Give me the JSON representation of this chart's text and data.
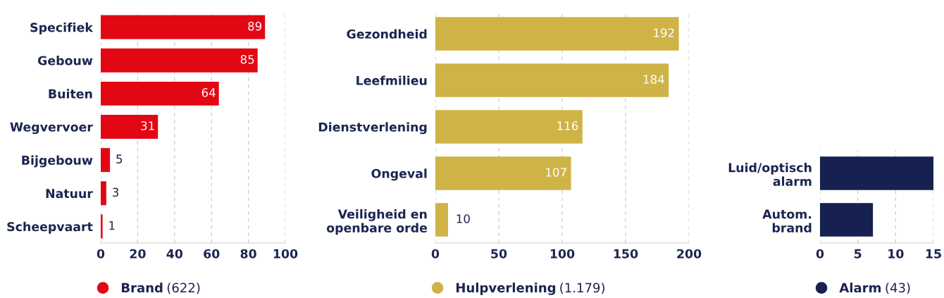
{
  "chart_data": [
    {
      "type": "bar",
      "orientation": "horizontal",
      "categories": [
        "Specifiek",
        "Gebouw",
        "Buiten",
        "Wegvervoer",
        "Bijgebouw",
        "Natuur",
        "Scheepvaart"
      ],
      "series": [
        {
          "name": "Brand",
          "color": "#e30613",
          "values": [
            89,
            85,
            64,
            31,
            5,
            3,
            1
          ]
        }
      ],
      "xlim": [
        0,
        100
      ],
      "xticks": [
        0,
        20,
        40,
        60,
        80,
        100
      ],
      "grid": "x",
      "data_labels": true,
      "legend": "bottom",
      "annotations": [
        "(622)"
      ]
    },
    {
      "type": "bar",
      "orientation": "horizontal",
      "categories": [
        "Gezondheid",
        "Leefmilieu",
        "Dienstverlening",
        "Ongeval",
        "Veiligheid en\nopenbare orde"
      ],
      "series": [
        {
          "name": "Hulpverlening",
          "color": "#cfb346",
          "values": [
            192,
            184,
            116,
            107,
            10
          ]
        }
      ],
      "xlim": [
        0,
        200
      ],
      "xticks": [
        0,
        50,
        100,
        150,
        200
      ],
      "grid": "x",
      "data_labels": true,
      "legend": "bottom",
      "annotations": [
        "(1.179)"
      ]
    },
    {
      "type": "bar",
      "orientation": "horizontal",
      "categories": [
        "Luid/optisch\nalarm",
        "Autom.\nbrand"
      ],
      "series": [
        {
          "name": "Alarm",
          "color": "#16214f",
          "values": [
            15,
            7
          ]
        }
      ],
      "xlim": [
        0,
        15
      ],
      "xticks": [
        0,
        5,
        10,
        15
      ],
      "grid": "x",
      "legend": "bottom",
      "annotations": [
        "(43)"
      ]
    }
  ]
}
